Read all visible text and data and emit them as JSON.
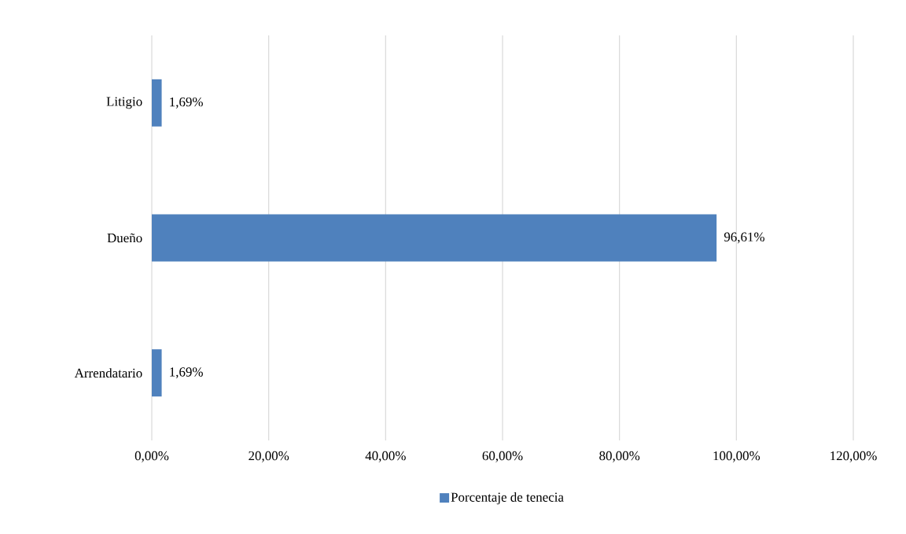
{
  "chart_data": {
    "type": "bar",
    "orientation": "horizontal",
    "categories": [
      "Litigio",
      "Dueño",
      "Arrendatario"
    ],
    "series": [
      {
        "name": "Porcentaje de tenecia",
        "color": "#4f81bd",
        "values": [
          1.69,
          96.61,
          1.69
        ],
        "value_labels": [
          "1,69%",
          "96,61%",
          "1,69%"
        ]
      }
    ],
    "xlim": [
      0,
      120
    ],
    "xticks": [
      {
        "value": 0,
        "label": "0,00%"
      },
      {
        "value": 20,
        "label": "20,00%"
      },
      {
        "value": 40,
        "label": "40,00%"
      },
      {
        "value": 60,
        "label": "60,00%"
      },
      {
        "value": 80,
        "label": "80,00%"
      },
      {
        "value": 100,
        "label": "100,00%"
      },
      {
        "value": 120,
        "label": "120,00%"
      }
    ],
    "grid": "x",
    "legend": "bottom"
  }
}
